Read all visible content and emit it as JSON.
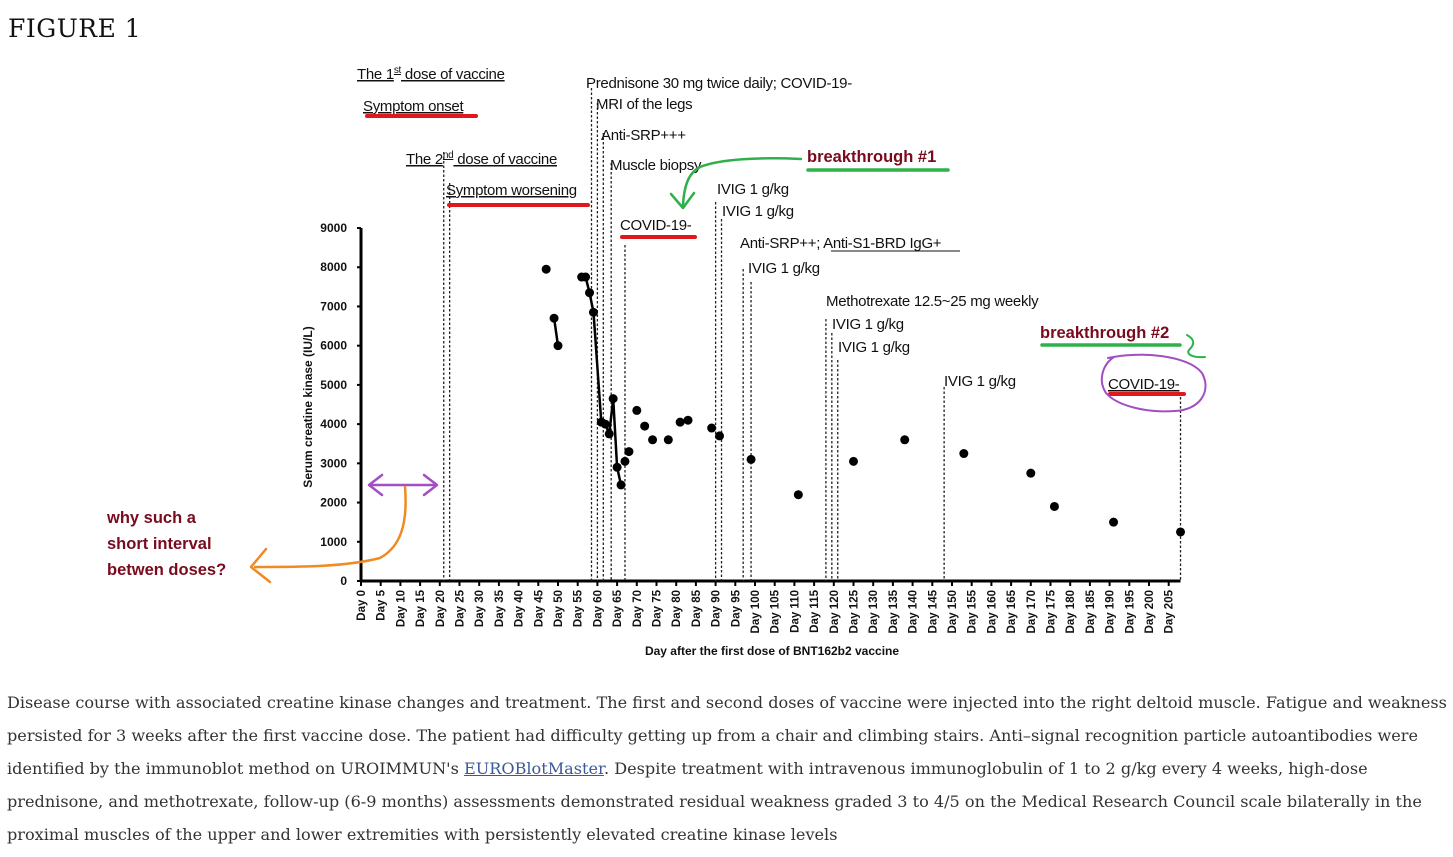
{
  "figure": {
    "title": "FIGURE 1"
  },
  "caption": {
    "text_before_link": "Disease course with associated creatine kinase changes and treatment. The first and second doses of vaccine were injected into the right deltoid muscle. Fatigue and weakness persisted for 3 weeks after the first vaccine dose. The patient had difficulty getting up from a chair and climbing stairs. Anti–signal recognition particle autoantibodies were identified by the immunoblot method on UROIMMUN's ",
    "link_text": "EUROBlotMaster",
    "text_after_link": ". Despite treatment with intravenous immunoglobulin of 1 to 2 g/kg every 4 weeks, high-dose prednisone, and methotrexate, follow-up (6-9 months) assessments demonstrated residual weakness graded 3 to 4/5 on the Medical Research Council scale bilaterally in the proximal muscles of the upper and lower extremities with persistently elevated creatine kinase levels"
  },
  "chart_data": {
    "type": "scatter",
    "xlabel": "Day after the first dose of BNT162b2  vaccine",
    "ylabel": "Serum creatine kinase (IU/L)",
    "xlim": [
      0,
      208
    ],
    "ylim": [
      0,
      9000
    ],
    "y_ticks": [
      0,
      1000,
      2000,
      3000,
      4000,
      5000,
      6000,
      7000,
      8000,
      9000
    ],
    "x_tick_step": 5,
    "x_tick_labels": [
      "Day 0",
      "Day 5",
      "Day 10",
      "Day 15",
      "Day 20",
      "Day 25",
      "Day 30",
      "Day 35",
      "Day 40",
      "Day 45",
      "Day 50",
      "Day 55",
      "Day 60",
      "Day 65",
      "Day 70",
      "Day 75",
      "Day 80",
      "Day 85",
      "Day 90",
      "Day 95",
      "Day 100",
      "Day 105",
      "Day 110",
      "Day 115",
      "Day 120",
      "Day 125",
      "Day 130",
      "Day 135",
      "Day 140",
      "Day 145",
      "Day 150",
      "Day 155",
      "Day 160",
      "Day 165",
      "Day 170",
      "Day 175",
      "Day 180",
      "Day 185",
      "Day 190",
      "Day 195",
      "Day 200",
      "Day 205"
    ],
    "series": [
      {
        "name": "Serum creatine kinase",
        "points": [
          {
            "day": 47,
            "ck": 7950
          },
          {
            "day": 49,
            "ck": 6700
          },
          {
            "day": 50,
            "ck": 6000
          },
          {
            "day": 56,
            "ck": 7750
          },
          {
            "day": 57,
            "ck": 7750
          },
          {
            "day": 58,
            "ck": 7350
          },
          {
            "day": 59,
            "ck": 6850
          },
          {
            "day": 61,
            "ck": 4050
          },
          {
            "day": 62,
            "ck": 4000
          },
          {
            "day": 63,
            "ck": 3750
          },
          {
            "day": 64,
            "ck": 4650
          },
          {
            "day": 65,
            "ck": 2900
          },
          {
            "day": 66,
            "ck": 2450
          },
          {
            "day": 67,
            "ck": 3050
          },
          {
            "day": 68,
            "ck": 3300
          },
          {
            "day": 70,
            "ck": 4350
          },
          {
            "day": 72,
            "ck": 3950
          },
          {
            "day": 74,
            "ck": 3600
          },
          {
            "day": 78,
            "ck": 3600
          },
          {
            "day": 81,
            "ck": 4050
          },
          {
            "day": 83,
            "ck": 4100
          },
          {
            "day": 89,
            "ck": 3900
          },
          {
            "day": 91,
            "ck": 3700
          },
          {
            "day": 99,
            "ck": 3100
          },
          {
            "day": 111,
            "ck": 2200
          },
          {
            "day": 125,
            "ck": 3050
          },
          {
            "day": 138,
            "ck": 3600
          },
          {
            "day": 153,
            "ck": 3250
          },
          {
            "day": 170,
            "ck": 2750
          },
          {
            "day": 176,
            "ck": 1900
          },
          {
            "day": 191,
            "ck": 1500
          },
          {
            "day": 208,
            "ck": 1250
          }
        ],
        "connected_segments": [
          [
            49,
            50
          ],
          [
            56,
            66
          ]
        ]
      }
    ],
    "event_lines": [
      {
        "day": 0,
        "label": "Symptom onset"
      },
      {
        "day": 21,
        "label": "The 2nd dose of vaccine"
      },
      {
        "day": 22.5,
        "label": "Symptom worsening"
      },
      {
        "day": 58.5,
        "label": "Prednisone 30 mg twice daily; COVID-19-"
      },
      {
        "day": 60,
        "label": "MRI of the legs"
      },
      {
        "day": 61.5,
        "label": "Anti-SRP+++"
      },
      {
        "day": 63.5,
        "label": "Muscle biopsy"
      },
      {
        "day": 67,
        "label": "COVID-19-"
      },
      {
        "day": 90,
        "label": "IVIG  1 g/kg"
      },
      {
        "day": 91.5,
        "label": "IVIG  1 g/kg"
      },
      {
        "day": 97,
        "label": "Anti-SRP++; Anti-S1-BRD IgG+"
      },
      {
        "day": 99,
        "label": "IVIG  1 g/kg"
      },
      {
        "day": 118,
        "label": "Methotrexate  12.5~25 mg weekly"
      },
      {
        "day": 119.5,
        "label": "IVIG  1 g/kg"
      },
      {
        "day": 121,
        "label": "IVIG  1 g/kg"
      },
      {
        "day": 148,
        "label": "IVIG  1 g/kg"
      },
      {
        "day": 208,
        "label": "COVID-19-"
      }
    ],
    "text_annotations": {
      "dose1_label": "The 1st dose of vaccine",
      "dose2_label": "The 2nd dose of vaccine",
      "superscript_1": "st",
      "superscript_2": "nd",
      "breakthrough1": "breakthrough #1",
      "breakthrough2": "breakthrough #2",
      "question_line1": "why such a",
      "question_line2": "short interval",
      "question_line3": "betwen doses?"
    },
    "annotation_colors": {
      "underline_red": "#e0181c",
      "breakthrough_text": "#7a0a1e",
      "breakthrough_underline_green": "#2eb04a",
      "purple": "#a24fc1",
      "orange": "#f08a24",
      "question_text": "#7a0a1e"
    }
  }
}
